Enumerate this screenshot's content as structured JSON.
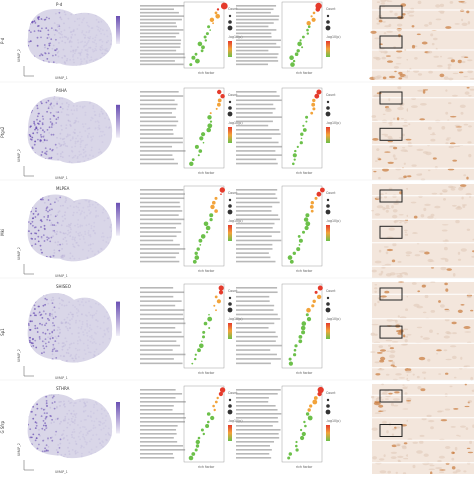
{
  "figure": {
    "rows": [
      {
        "gene": "P-d",
        "side_label": "P-d",
        "axis_x": "UMAP_1",
        "axis_y": "UMAP_2"
      },
      {
        "gene": "P4HA",
        "side_label": "Ptgs2",
        "axis_x": "UMAP_1",
        "axis_y": "UMAP_2"
      },
      {
        "gene": "MLPEA",
        "side_label": "Mki",
        "axis_x": "UMAP_1",
        "axis_y": "UMAP_2"
      },
      {
        "gene": "SHISEO",
        "side_label": "Sp1",
        "axis_x": "UMAP_1",
        "axis_y": "UMAP_2"
      },
      {
        "gene": "STHRA",
        "side_label": "G Sfrp",
        "axis_x": "UMAP_1",
        "axis_y": "UMAP_2"
      }
    ],
    "dotplot": {
      "x_label": "rich factor",
      "legend_title_size": "Count",
      "legend_title_color": "-log10(p)"
    },
    "colors": {
      "umap_high": "#6a4fb3",
      "umap_low": "#d9d6e8",
      "dot_red": "#e53b2c",
      "dot_orange": "#f2a33a",
      "dot_green": "#6cc04a",
      "tissue": "#f3e6dc",
      "stain": "#c8793a"
    }
  }
}
